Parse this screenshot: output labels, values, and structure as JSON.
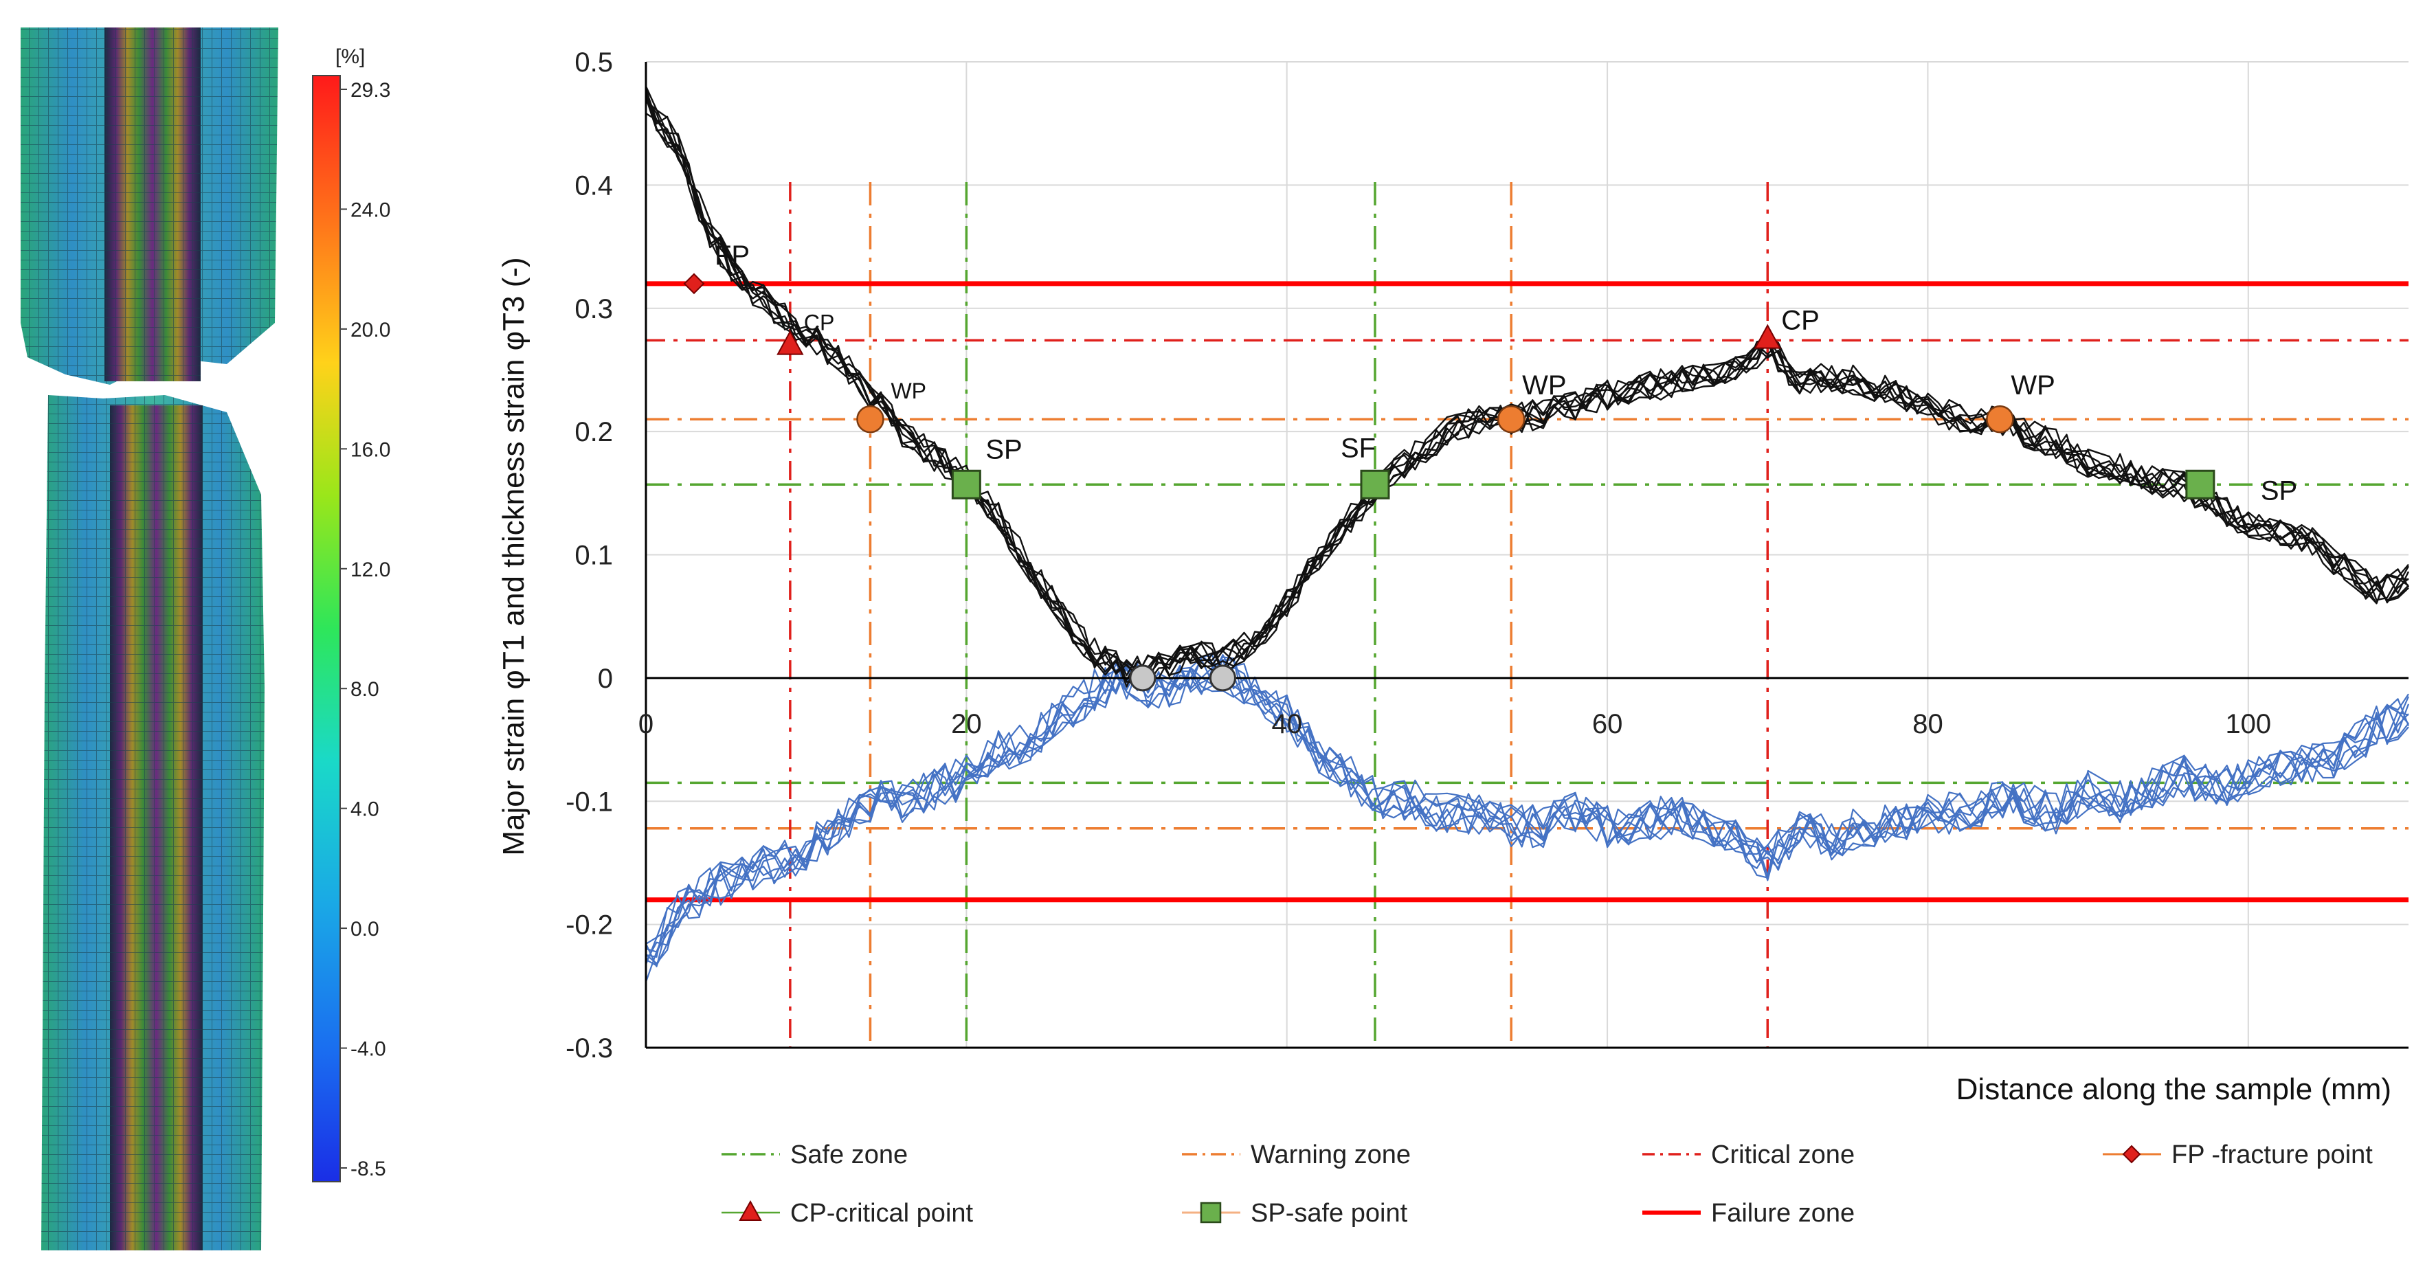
{
  "colorbar": {
    "unit": "[%]",
    "ticks": [
      "29.3",
      "24.0",
      "20.0",
      "16.0",
      "12.0",
      "8.0",
      "4.0",
      "0.0",
      "-4.0",
      "-8.5"
    ],
    "colors": [
      "#ff1a1a",
      "#ff7a1a",
      "#ffd21a",
      "#9ae61a",
      "#2ee65a",
      "#1ad9c8",
      "#1aa8e6",
      "#1a6ef0",
      "#1a2ee6"
    ]
  },
  "chart_data": {
    "type": "line",
    "xlabel": "Distance along the sample  (mm)",
    "ylabel": "Major strain φT1 and thickness strain φT3  (-)",
    "xlim": [
      0,
      110
    ],
    "ylim": [
      -0.3,
      0.5
    ],
    "x_ticks": [
      "0",
      "20",
      "40",
      "60",
      "80",
      "100"
    ],
    "y_ticks": [
      "0.5",
      "0.4",
      "0.3",
      "0.2",
      "0.1",
      "0",
      "-0.1",
      "-0.2",
      "-0.3"
    ],
    "grid": true,
    "legend_position": "bottom",
    "major_strain_curve": {
      "color": "#111111",
      "x": [
        0,
        2,
        4,
        6,
        8,
        10,
        12,
        14,
        16,
        18,
        20,
        22,
        24,
        26,
        28,
        30,
        32,
        34,
        36,
        38,
        40,
        42,
        44,
        46,
        48,
        50,
        52,
        54,
        56,
        58,
        60,
        62,
        64,
        66,
        68,
        70,
        72,
        74,
        76,
        78,
        80,
        82,
        84,
        86,
        88,
        90,
        92,
        94,
        96,
        98,
        100,
        102,
        104,
        106,
        108,
        110
      ],
      "y": [
        0.47,
        0.43,
        0.36,
        0.32,
        0.3,
        0.28,
        0.26,
        0.23,
        0.2,
        0.18,
        0.16,
        0.13,
        0.09,
        0.05,
        0.02,
        0.005,
        0.01,
        0.02,
        0.015,
        0.03,
        0.06,
        0.1,
        0.13,
        0.16,
        0.18,
        0.2,
        0.21,
        0.21,
        0.215,
        0.22,
        0.23,
        0.235,
        0.24,
        0.245,
        0.25,
        0.27,
        0.24,
        0.245,
        0.24,
        0.23,
        0.22,
        0.21,
        0.21,
        0.2,
        0.19,
        0.175,
        0.17,
        0.16,
        0.155,
        0.14,
        0.125,
        0.12,
        0.11,
        0.09,
        0.07,
        0.08
      ]
    },
    "thickness_strain_curve": {
      "color": "#4472c4",
      "x": [
        0,
        2,
        4,
        6,
        8,
        10,
        12,
        14,
        16,
        18,
        20,
        22,
        24,
        26,
        28,
        30,
        32,
        34,
        36,
        38,
        40,
        42,
        44,
        46,
        48,
        50,
        52,
        54,
        56,
        58,
        60,
        62,
        64,
        66,
        68,
        70,
        72,
        74,
        76,
        78,
        80,
        82,
        84,
        86,
        88,
        90,
        92,
        94,
        96,
        98,
        100,
        102,
        104,
        106,
        108,
        110
      ],
      "y": [
        -0.23,
        -0.19,
        -0.17,
        -0.16,
        -0.15,
        -0.14,
        -0.12,
        -0.1,
        -0.1,
        -0.09,
        -0.08,
        -0.06,
        -0.05,
        -0.03,
        -0.01,
        0,
        -0.01,
        0,
        0.005,
        -0.01,
        -0.03,
        -0.06,
        -0.08,
        -0.1,
        -0.1,
        -0.11,
        -0.11,
        -0.12,
        -0.12,
        -0.11,
        -0.12,
        -0.12,
        -0.11,
        -0.12,
        -0.13,
        -0.15,
        -0.12,
        -0.13,
        -0.12,
        -0.12,
        -0.11,
        -0.11,
        -0.1,
        -0.1,
        -0.11,
        -0.09,
        -0.1,
        -0.09,
        -0.08,
        -0.09,
        -0.08,
        -0.07,
        -0.07,
        -0.06,
        -0.04,
        -0.03
      ]
    },
    "zone_lines": {
      "safe": {
        "h": [
          0.157,
          -0.085
        ],
        "v": [
          20,
          45.5
        ],
        "color": "#55a630"
      },
      "warning": {
        "h": [
          0.21,
          -0.122
        ],
        "v": [
          14,
          54
        ],
        "color": "#ed7d31"
      },
      "critical": {
        "h": [
          0.274
        ],
        "v": [
          9,
          70
        ],
        "color": "#e0201c"
      },
      "failure": {
        "h": [
          0.32,
          -0.18
        ],
        "color": "#ff0000"
      }
    },
    "points": [
      {
        "type": "FP",
        "x": 3,
        "y": 0.32,
        "label": "FP"
      },
      {
        "type": "CP",
        "x": 9,
        "y": 0.27,
        "label": "CP"
      },
      {
        "type": "CP",
        "x": 70,
        "y": 0.275,
        "label": "CP"
      },
      {
        "type": "WP",
        "x": 14,
        "y": 0.21,
        "label": "WP"
      },
      {
        "type": "WP",
        "x": 54,
        "y": 0.21,
        "label": "WP"
      },
      {
        "type": "WP",
        "x": 84.5,
        "y": 0.21,
        "label": "WP"
      },
      {
        "type": "SP",
        "x": 20,
        "y": 0.157,
        "label": "SP"
      },
      {
        "type": "SP",
        "x": 45.5,
        "y": 0.157,
        "label": "SF"
      },
      {
        "type": "SP",
        "x": 97,
        "y": 0.157,
        "label": "SP"
      },
      {
        "type": "MIN",
        "x": 31,
        "y": 0,
        "label": ""
      },
      {
        "type": "MIN",
        "x": 36,
        "y": 0,
        "label": ""
      }
    ],
    "legend": [
      {
        "key": "safe",
        "label": "Safe zone"
      },
      {
        "key": "warning",
        "label": "Warning zone"
      },
      {
        "key": "critical",
        "label": "Critical zone"
      },
      {
        "key": "fp",
        "label": "FP -fracture point"
      },
      {
        "key": "cp",
        "label": "CP-critical point"
      },
      {
        "key": "sp",
        "label": "SP-safe point"
      },
      {
        "key": "failure",
        "label": "Failure zone"
      }
    ]
  }
}
